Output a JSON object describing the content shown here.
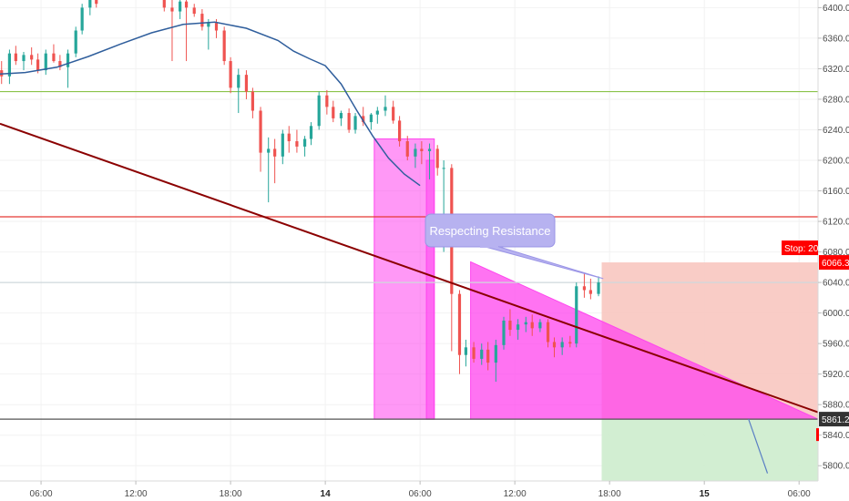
{
  "chart_data": {
    "type": "candlestick",
    "y_ticks": [
      "6400.0",
      "6360.0",
      "6320.0",
      "6280.0",
      "6240.0",
      "6200.0",
      "6160.0",
      "6120.0",
      "6080.0",
      "6040.0",
      "6000.0",
      "5960.0",
      "5920.0",
      "5880.0",
      "5840.0",
      "5800.0"
    ],
    "ylim": [
      5780,
      6410
    ],
    "x_ticks": [
      "06:00",
      "12:00",
      "18:00",
      "14",
      "06:00",
      "12:00",
      "18:00",
      "15",
      "06:00"
    ],
    "x_tick_hours": [
      6,
      12,
      18,
      24,
      30,
      36,
      42,
      48,
      54
    ],
    "xlim_hours": [
      3.4,
      55.2
    ],
    "moving_average": [
      [
        3.4,
        6313
      ],
      [
        5,
        6315
      ],
      [
        7,
        6322
      ],
      [
        9,
        6336
      ],
      [
        11,
        6352
      ],
      [
        13,
        6367
      ],
      [
        15,
        6378
      ],
      [
        17,
        6381
      ],
      [
        19,
        6373
      ],
      [
        21,
        6357
      ],
      [
        22,
        6343
      ],
      [
        23,
        6333
      ],
      [
        24,
        6324
      ],
      [
        25,
        6300
      ],
      [
        26,
        6265
      ],
      [
        27,
        6232
      ],
      [
        28,
        6203
      ],
      [
        29,
        6182
      ],
      [
        30,
        6167
      ]
    ],
    "candles": [
      [
        3.5,
        6318,
        6330,
        6300,
        6310
      ],
      [
        4.0,
        6310,
        6345,
        6300,
        6340
      ],
      [
        4.4,
        6340,
        6350,
        6325,
        6330
      ],
      [
        4.9,
        6330,
        6342,
        6318,
        6338
      ],
      [
        5.4,
        6338,
        6348,
        6325,
        6332
      ],
      [
        5.8,
        6332,
        6340,
        6314,
        6318
      ],
      [
        6.3,
        6318,
        6345,
        6312,
        6340
      ],
      [
        6.8,
        6340,
        6352,
        6328,
        6330
      ],
      [
        7.2,
        6330,
        6338,
        6318,
        6322
      ],
      [
        7.7,
        6322,
        6345,
        6295,
        6340
      ],
      [
        8.2,
        6340,
        6375,
        6335,
        6370
      ],
      [
        8.6,
        6370,
        6405,
        6365,
        6400
      ],
      [
        9.1,
        6400,
        6415,
        6390,
        6410
      ],
      [
        9.5,
        6410,
        6418,
        6400,
        6405
      ],
      [
        13.8,
        6410,
        6415,
        6395,
        6400
      ],
      [
        14.3,
        6400,
        6410,
        6330,
        6395
      ],
      [
        14.8,
        6395,
        6412,
        6385,
        6408
      ],
      [
        15.2,
        6408,
        6412,
        6330,
        6400
      ],
      [
        15.7,
        6400,
        6405,
        6388,
        6392
      ],
      [
        16.2,
        6392,
        6398,
        6370,
        6375
      ],
      [
        16.6,
        6375,
        6385,
        6345,
        6380
      ],
      [
        17.1,
        6380,
        6385,
        6360,
        6370
      ],
      [
        17.6,
        6370,
        6375,
        6325,
        6330
      ],
      [
        18.0,
        6330,
        6335,
        6288,
        6295
      ],
      [
        18.5,
        6295,
        6320,
        6262,
        6312
      ],
      [
        19.0,
        6312,
        6318,
        6280,
        6290
      ],
      [
        19.4,
        6290,
        6295,
        6255,
        6265
      ],
      [
        19.9,
        6265,
        6270,
        6185,
        6210
      ],
      [
        20.4,
        6210,
        6230,
        6145,
        6215
      ],
      [
        20.8,
        6215,
        6228,
        6170,
        6205
      ],
      [
        21.3,
        6205,
        6240,
        6195,
        6235
      ],
      [
        21.7,
        6235,
        6245,
        6210,
        6225
      ],
      [
        22.2,
        6225,
        6240,
        6210,
        6218
      ],
      [
        22.7,
        6218,
        6232,
        6205,
        6228
      ],
      [
        23.1,
        6228,
        6250,
        6220,
        6245
      ],
      [
        23.6,
        6245,
        6290,
        6240,
        6285
      ],
      [
        24.1,
        6285,
        6292,
        6260,
        6270
      ],
      [
        24.5,
        6270,
        6278,
        6250,
        6255
      ],
      [
        25.0,
        6255,
        6265,
        6245,
        6262
      ],
      [
        25.5,
        6262,
        6268,
        6236,
        6240
      ],
      [
        25.9,
        6240,
        6262,
        6235,
        6258
      ],
      [
        26.4,
        6258,
        6270,
        6245,
        6250
      ],
      [
        26.9,
        6250,
        6262,
        6240,
        6260
      ],
      [
        27.3,
        6260,
        6270,
        6248,
        6265
      ],
      [
        27.8,
        6265,
        6285,
        6258,
        6270
      ],
      [
        28.3,
        6270,
        6278,
        6248,
        6252
      ],
      [
        28.7,
        6252,
        6258,
        6218,
        6225
      ],
      [
        29.2,
        6225,
        6232,
        6200,
        6205
      ],
      [
        29.7,
        6205,
        6222,
        6190,
        6215
      ],
      [
        30.1,
        6215,
        6225,
        6195,
        6212
      ],
      [
        30.6,
        6212,
        6222,
        6175,
        6215
      ],
      [
        31.1,
        6215,
        6220,
        6180,
        6190
      ],
      [
        31.5,
        6190,
        6200,
        6080,
        6190
      ],
      [
        32.0,
        6190,
        6195,
        5950,
        6025
      ],
      [
        32.5,
        6025,
        6030,
        5920,
        5945
      ],
      [
        32.9,
        5945,
        5965,
        5930,
        5955
      ],
      [
        33.4,
        5955,
        5962,
        5935,
        5940
      ],
      [
        33.9,
        5940,
        5960,
        5932,
        5952
      ],
      [
        34.3,
        5952,
        5962,
        5925,
        5935
      ],
      [
        34.8,
        5935,
        5965,
        5910,
        5958
      ],
      [
        35.3,
        5958,
        5995,
        5952,
        5990
      ],
      [
        35.7,
        5990,
        6005,
        5970,
        5978
      ],
      [
        36.2,
        5978,
        5992,
        5965,
        5985
      ],
      [
        36.7,
        5985,
        5995,
        5975,
        5988
      ],
      [
        37.1,
        5988,
        5998,
        5970,
        5980
      ],
      [
        37.6,
        5980,
        5992,
        5975,
        5988
      ],
      [
        38.1,
        5988,
        5992,
        5955,
        5962
      ],
      [
        38.5,
        5962,
        5968,
        5942,
        5955
      ],
      [
        39.0,
        5955,
        5968,
        5945,
        5962
      ],
      [
        39.5,
        5962,
        5970,
        5955,
        5960
      ],
      [
        39.9,
        5960,
        6040,
        5955,
        6035
      ],
      [
        40.4,
        6035,
        6052,
        6020,
        6030
      ],
      [
        40.8,
        6030,
        6045,
        6018,
        6025
      ],
      [
        41.3,
        6025,
        6048,
        6022,
        6040
      ]
    ],
    "horizontal_lines": [
      {
        "price": 6290,
        "color": "#8bc34a"
      },
      {
        "price": 6126,
        "color": "#e53935"
      },
      {
        "price": 6040,
        "color": "#cfd8dc"
      },
      {
        "price": 5861,
        "color": "#555555"
      }
    ],
    "trendline": {
      "start": [
        3.4,
        6248
      ],
      "end": [
        55.2,
        5870
      ],
      "color": "#8b0000"
    },
    "long_position": {
      "start_hour": 41.5,
      "end_hour": 55.2,
      "entry": 5861,
      "stop": 6066.3,
      "target": 5780,
      "stop_color": "#f8c6c0",
      "target_color": "#cdeccd"
    },
    "triangle": {
      "points": [
        [
          33.2,
          6067
        ],
        [
          55.2,
          5861
        ],
        [
          33.2,
          5861
        ]
      ],
      "color": "#ff44ee"
    },
    "rectangles": [
      {
        "start_hour": 27.1,
        "end_hour": 30.9,
        "top": 6228,
        "bottom": 5861,
        "color": "#ff44ee"
      },
      {
        "start_hour": 30.4,
        "end_hour": 30.9,
        "top": 6200,
        "bottom": 5861,
        "color": "#ff44ee"
      }
    ],
    "projection_line": {
      "start": [
        50.8,
        5861
      ],
      "end": [
        52.0,
        5790
      ],
      "color": "#5a7fc4"
    },
    "callout": {
      "text": "Respecting Resistance",
      "anchor": [
        41.6,
        6045
      ]
    },
    "price_tags": {
      "stop_label": "Stop: 20",
      "stop_value": "6066.3",
      "entry_value": "5861.2",
      "stop_color": "#ff0000",
      "entry_color": "#333333"
    },
    "colors": {
      "up": "#26a69a",
      "down": "#ef5350",
      "ma": "#2f5e9c"
    }
  }
}
